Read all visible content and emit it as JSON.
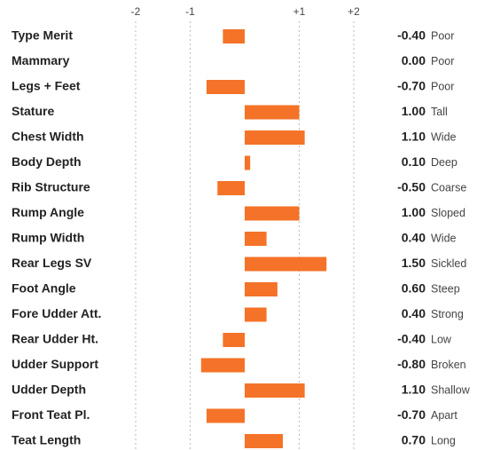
{
  "chart_data": {
    "type": "bar",
    "categories": [
      "Type Merit",
      "Mammary",
      "Legs + Feet",
      "Stature",
      "Chest Width",
      "Body Depth",
      "Rib Structure",
      "Rump Angle",
      "Rump Width",
      "Rear Legs SV",
      "Foot Angle",
      "Fore Udder Att.",
      "Rear Udder Ht.",
      "Udder Support",
      "Udder Depth",
      "Front Teat Pl.",
      "Teat Length"
    ],
    "values": [
      -0.4,
      0,
      -0.7,
      1,
      1.1,
      0.1,
      -0.5,
      1,
      0.4,
      1.5,
      0.6,
      0.4,
      -0.4,
      -0.8,
      1.1,
      -0.7,
      0.7
    ],
    "value_labels": [
      "-0.40",
      "0.00",
      "-0.70",
      "1.00",
      "1.10",
      "0.10",
      "-0.50",
      "1.00",
      "0.40",
      "1.50",
      "0.60",
      "0.40",
      "-0.40",
      "-0.80",
      "1.10",
      "-0.70",
      "0.70"
    ],
    "descriptors": [
      "Poor",
      "Poor",
      "Poor",
      "Tall",
      "Wide",
      "Deep",
      "Coarse",
      "Sloped",
      "Wide",
      "Sickled",
      "Steep",
      "Strong",
      "Low",
      "Broken",
      "Shallow",
      "Apart",
      "Long"
    ],
    "color": "#f47328",
    "xlim": [
      -2,
      2
    ],
    "xticks": [
      -2,
      -1,
      {
        "value": 1,
        "label": "+1"
      },
      {
        "value": 2,
        "label": "+2"
      }
    ],
    "grid": true
  }
}
